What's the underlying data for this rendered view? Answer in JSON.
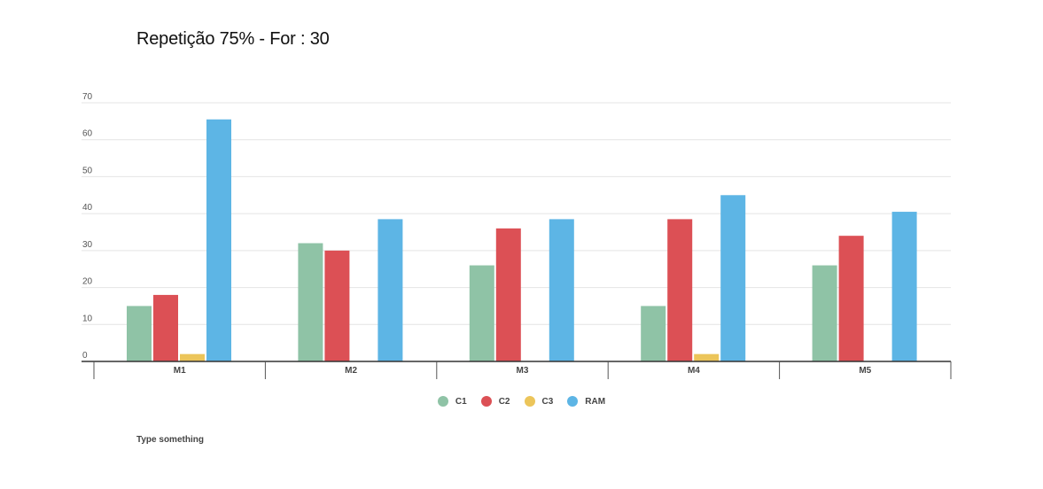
{
  "chart_data": {
    "type": "bar",
    "title": "Repetição 75% - For : 30",
    "categories": [
      "M1",
      "M2",
      "M3",
      "M4",
      "M5"
    ],
    "series": [
      {
        "name": "C1",
        "color": "#8fc3a6",
        "values": [
          15,
          32,
          26,
          15,
          26
        ]
      },
      {
        "name": "C2",
        "color": "#dc5055",
        "values": [
          18,
          30,
          36,
          38.5,
          34
        ]
      },
      {
        "name": "C3",
        "color": "#ecc55a",
        "values": [
          2,
          0,
          0,
          2,
          0
        ]
      },
      {
        "name": "RAM",
        "color": "#5db5e5",
        "values": [
          65.5,
          38.5,
          38.5,
          45,
          40.5
        ]
      }
    ],
    "yticks": [
      "0",
      "10",
      "20",
      "30",
      "40",
      "50",
      "60",
      "70"
    ],
    "ylim": [
      0,
      70
    ],
    "xlabel": "",
    "ylabel": "",
    "grid": true,
    "legend_position": "bottom-center"
  },
  "note": "Type something"
}
